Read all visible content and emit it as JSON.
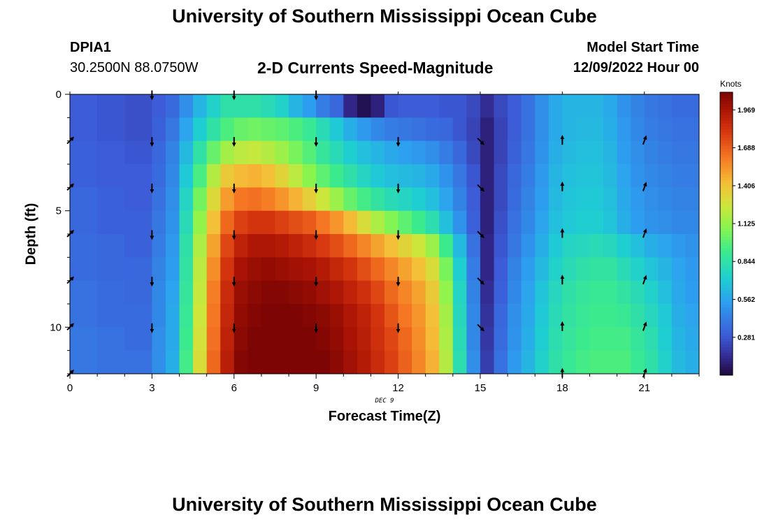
{
  "header": {
    "title": "University of Southern Mississippi Ocean Cube",
    "station": "DPIA1",
    "coords": "30.2500N  88.0750W",
    "subtitle": "2-D Currents Speed-Magnitude",
    "start_label": "Model Start Time",
    "start_value": "12/09/2022 Hour 00",
    "footer_title": "University of Southern Mississippi Ocean Cube"
  },
  "chart_data": {
    "type": "heatmap",
    "xlabel": "Forecast Time(Z)",
    "ylabel": "Depth (ft)",
    "date_label": "DEC 9",
    "colorbar_unit": "Knots",
    "x_ticks": [
      0,
      3,
      6,
      9,
      12,
      15,
      18,
      21
    ],
    "y_ticks": [
      0,
      5,
      10
    ],
    "xlim": [
      0,
      23
    ],
    "ylim": [
      0,
      12
    ],
    "y_inverted": true,
    "colorbar_ticks": [
      0.281,
      0.562,
      0.844,
      1.125,
      1.406,
      1.688,
      1.969
    ],
    "colorbar_range": [
      0,
      2.1
    ],
    "time_columns": [
      0,
      0.5,
      1,
      1.5,
      2,
      2.5,
      3,
      3.5,
      4,
      4.5,
      5,
      5.5,
      6,
      6.5,
      7,
      7.5,
      8,
      8.5,
      9,
      9.5,
      10,
      10.5,
      11,
      11.5,
      12,
      12.5,
      13,
      13.5,
      14,
      14.5,
      15,
      15.5,
      16,
      16.5,
      17,
      17.5,
      18,
      18.5,
      19,
      19.5,
      20,
      20.5,
      21,
      21.5,
      22,
      22.5
    ],
    "depth_rows": [
      0,
      1,
      2,
      3,
      4,
      5,
      6,
      7,
      8,
      9,
      10,
      11
    ],
    "speed_knots": [
      [
        0.3,
        0.3,
        0.28,
        0.28,
        0.26,
        0.26,
        0.3,
        0.35,
        0.48,
        0.62,
        0.74,
        0.84,
        0.84,
        0.84,
        0.8,
        0.74,
        0.62,
        0.54,
        0.42,
        0.34,
        0.12,
        0.04,
        0.1,
        0.28,
        0.3,
        0.3,
        0.3,
        0.28,
        0.28,
        0.24,
        0.14,
        0.24,
        0.3,
        0.38,
        0.48,
        0.58,
        0.62,
        0.62,
        0.62,
        0.58,
        0.5,
        0.44,
        0.4,
        0.38,
        0.36,
        0.36
      ],
      [
        0.3,
        0.3,
        0.28,
        0.28,
        0.26,
        0.26,
        0.32,
        0.4,
        0.56,
        0.72,
        0.85,
        0.96,
        1.02,
        1.04,
        1.02,
        1.0,
        0.96,
        0.9,
        0.8,
        0.7,
        0.6,
        0.52,
        0.46,
        0.42,
        0.4,
        0.38,
        0.36,
        0.34,
        0.28,
        0.22,
        0.1,
        0.22,
        0.3,
        0.38,
        0.48,
        0.58,
        0.62,
        0.64,
        0.64,
        0.6,
        0.52,
        0.46,
        0.42,
        0.4,
        0.38,
        0.38
      ],
      [
        0.32,
        0.32,
        0.3,
        0.3,
        0.28,
        0.28,
        0.34,
        0.44,
        0.64,
        0.85,
        1.02,
        1.16,
        1.22,
        1.24,
        1.2,
        1.14,
        1.06,
        0.98,
        0.88,
        0.8,
        0.72,
        0.66,
        0.62,
        0.58,
        0.55,
        0.52,
        0.48,
        0.42,
        0.34,
        0.24,
        0.1,
        0.22,
        0.32,
        0.4,
        0.5,
        0.6,
        0.64,
        0.66,
        0.66,
        0.62,
        0.54,
        0.48,
        0.44,
        0.42,
        0.4,
        0.4
      ],
      [
        0.32,
        0.32,
        0.3,
        0.3,
        0.3,
        0.3,
        0.36,
        0.46,
        0.7,
        0.95,
        1.2,
        1.38,
        1.44,
        1.46,
        1.42,
        1.34,
        1.22,
        1.1,
        1.0,
        0.92,
        0.84,
        0.76,
        0.7,
        0.66,
        0.64,
        0.62,
        0.58,
        0.5,
        0.4,
        0.28,
        0.1,
        0.24,
        0.34,
        0.42,
        0.52,
        0.62,
        0.66,
        0.68,
        0.68,
        0.64,
        0.56,
        0.5,
        0.46,
        0.44,
        0.42,
        0.42
      ],
      [
        0.34,
        0.34,
        0.32,
        0.32,
        0.3,
        0.3,
        0.38,
        0.48,
        0.76,
        1.05,
        1.32,
        1.52,
        1.62,
        1.64,
        1.6,
        1.54,
        1.46,
        1.36,
        1.26,
        1.14,
        1.02,
        0.94,
        0.86,
        0.8,
        0.76,
        0.72,
        0.66,
        0.56,
        0.44,
        0.3,
        0.1,
        0.24,
        0.36,
        0.44,
        0.54,
        0.64,
        0.68,
        0.7,
        0.7,
        0.66,
        0.58,
        0.52,
        0.48,
        0.46,
        0.44,
        0.44
      ],
      [
        0.34,
        0.34,
        0.32,
        0.32,
        0.32,
        0.32,
        0.4,
        0.5,
        0.8,
        1.12,
        1.42,
        1.66,
        1.78,
        1.82,
        1.82,
        1.78,
        1.74,
        1.7,
        1.62,
        1.54,
        1.44,
        1.3,
        1.18,
        1.08,
        1.0,
        0.92,
        0.82,
        0.66,
        0.5,
        0.32,
        0.1,
        0.26,
        0.38,
        0.46,
        0.56,
        0.66,
        0.7,
        0.72,
        0.72,
        0.68,
        0.6,
        0.54,
        0.5,
        0.48,
        0.46,
        0.46
      ],
      [
        0.36,
        0.36,
        0.34,
        0.34,
        0.32,
        0.32,
        0.42,
        0.52,
        0.84,
        1.18,
        1.5,
        1.76,
        1.9,
        1.96,
        1.96,
        1.94,
        1.9,
        1.86,
        1.8,
        1.74,
        1.66,
        1.58,
        1.5,
        1.42,
        1.34,
        1.26,
        1.14,
        0.92,
        0.64,
        0.38,
        0.12,
        0.28,
        0.4,
        0.5,
        0.6,
        0.7,
        0.76,
        0.78,
        0.8,
        0.78,
        0.72,
        0.66,
        0.6,
        0.56,
        0.52,
        0.5
      ],
      [
        0.36,
        0.36,
        0.34,
        0.34,
        0.34,
        0.34,
        0.44,
        0.54,
        0.86,
        1.22,
        1.56,
        1.82,
        1.98,
        2.02,
        2.04,
        2.02,
        2.0,
        1.98,
        1.94,
        1.88,
        1.82,
        1.74,
        1.66,
        1.58,
        1.5,
        1.42,
        1.3,
        1.06,
        0.72,
        0.42,
        0.12,
        0.3,
        0.44,
        0.54,
        0.64,
        0.74,
        0.8,
        0.84,
        0.86,
        0.86,
        0.8,
        0.74,
        0.68,
        0.62,
        0.56,
        0.52
      ],
      [
        0.38,
        0.38,
        0.36,
        0.36,
        0.34,
        0.34,
        0.46,
        0.56,
        0.88,
        1.24,
        1.6,
        1.86,
        2.02,
        2.06,
        2.08,
        2.08,
        2.06,
        2.04,
        2.0,
        1.96,
        1.9,
        1.84,
        1.76,
        1.66,
        1.58,
        1.5,
        1.38,
        1.12,
        0.76,
        0.44,
        0.14,
        0.32,
        0.46,
        0.56,
        0.68,
        0.78,
        0.84,
        0.88,
        0.9,
        0.9,
        0.86,
        0.8,
        0.74,
        0.66,
        0.58,
        0.54
      ],
      [
        0.38,
        0.38,
        0.36,
        0.36,
        0.36,
        0.36,
        0.46,
        0.58,
        0.9,
        1.26,
        1.62,
        1.88,
        2.04,
        2.08,
        2.1,
        2.1,
        2.1,
        2.08,
        2.06,
        2.02,
        1.96,
        1.9,
        1.82,
        1.72,
        1.62,
        1.54,
        1.42,
        1.16,
        0.78,
        0.46,
        0.16,
        0.34,
        0.48,
        0.58,
        0.7,
        0.8,
        0.86,
        0.9,
        0.92,
        0.92,
        0.9,
        0.84,
        0.78,
        0.7,
        0.6,
        0.56
      ],
      [
        0.4,
        0.4,
        0.38,
        0.38,
        0.36,
        0.36,
        0.48,
        0.58,
        0.92,
        1.28,
        1.64,
        1.9,
        2.06,
        2.1,
        2.12,
        2.12,
        2.12,
        2.1,
        2.08,
        2.04,
        1.98,
        1.92,
        1.84,
        1.76,
        1.66,
        1.56,
        1.44,
        1.18,
        0.8,
        0.46,
        0.18,
        0.36,
        0.5,
        0.6,
        0.72,
        0.82,
        0.88,
        0.92,
        0.94,
        0.94,
        0.94,
        0.88,
        0.82,
        0.72,
        0.62,
        0.58
      ],
      [
        0.4,
        0.4,
        0.38,
        0.38,
        0.38,
        0.38,
        0.48,
        0.6,
        0.94,
        1.3,
        1.66,
        1.92,
        2.08,
        2.12,
        2.14,
        2.14,
        2.14,
        2.12,
        2.1,
        2.06,
        2.0,
        1.94,
        1.86,
        1.78,
        1.68,
        1.58,
        1.46,
        1.2,
        0.82,
        0.48,
        0.2,
        0.38,
        0.52,
        0.62,
        0.74,
        0.84,
        0.9,
        0.94,
        0.96,
        0.96,
        0.96,
        0.9,
        0.84,
        0.74,
        0.64,
        0.6
      ]
    ],
    "arrows": [
      {
        "t": 0,
        "depth": 2,
        "direction": "NE"
      },
      {
        "t": 0,
        "depth": 4,
        "direction": "NE"
      },
      {
        "t": 0,
        "depth": 6,
        "direction": "NE"
      },
      {
        "t": 0,
        "depth": 8,
        "direction": "NE"
      },
      {
        "t": 0,
        "depth": 10,
        "direction": "NE"
      },
      {
        "t": 0,
        "depth": 12,
        "direction": "NE"
      },
      {
        "t": 3,
        "depth": 0,
        "direction": "S"
      },
      {
        "t": 3,
        "depth": 2,
        "direction": "S"
      },
      {
        "t": 3,
        "depth": 4,
        "direction": "S"
      },
      {
        "t": 3,
        "depth": 6,
        "direction": "S"
      },
      {
        "t": 3,
        "depth": 8,
        "direction": "S"
      },
      {
        "t": 3,
        "depth": 10,
        "direction": "S"
      },
      {
        "t": 6,
        "depth": 0,
        "direction": "S"
      },
      {
        "t": 6,
        "depth": 2,
        "direction": "S"
      },
      {
        "t": 6,
        "depth": 4,
        "direction": "S"
      },
      {
        "t": 6,
        "depth": 6,
        "direction": "S"
      },
      {
        "t": 6,
        "depth": 8,
        "direction": "S"
      },
      {
        "t": 6,
        "depth": 10,
        "direction": "S"
      },
      {
        "t": 9,
        "depth": 0,
        "direction": "S"
      },
      {
        "t": 9,
        "depth": 2,
        "direction": "S"
      },
      {
        "t": 9,
        "depth": 4,
        "direction": "S"
      },
      {
        "t": 9,
        "depth": 6,
        "direction": "S"
      },
      {
        "t": 9,
        "depth": 8,
        "direction": "S"
      },
      {
        "t": 9,
        "depth": 10,
        "direction": "S"
      },
      {
        "t": 12,
        "depth": 2,
        "direction": "S"
      },
      {
        "t": 12,
        "depth": 4,
        "direction": "S"
      },
      {
        "t": 12,
        "depth": 6,
        "direction": "S"
      },
      {
        "t": 12,
        "depth": 8,
        "direction": "S"
      },
      {
        "t": 12,
        "depth": 10,
        "direction": "S"
      },
      {
        "t": 15,
        "depth": 2,
        "direction": "SE"
      },
      {
        "t": 15,
        "depth": 4,
        "direction": "SE"
      },
      {
        "t": 15,
        "depth": 6,
        "direction": "SE"
      },
      {
        "t": 15,
        "depth": 8,
        "direction": "SE"
      },
      {
        "t": 15,
        "depth": 10,
        "direction": "SE"
      },
      {
        "t": 18,
        "depth": 2,
        "direction": "N"
      },
      {
        "t": 18,
        "depth": 4,
        "direction": "N"
      },
      {
        "t": 18,
        "depth": 6,
        "direction": "N"
      },
      {
        "t": 18,
        "depth": 8,
        "direction": "N"
      },
      {
        "t": 18,
        "depth": 10,
        "direction": "N"
      },
      {
        "t": 18,
        "depth": 12,
        "direction": "N"
      },
      {
        "t": 21,
        "depth": 2,
        "direction": "NNE"
      },
      {
        "t": 21,
        "depth": 4,
        "direction": "NNE"
      },
      {
        "t": 21,
        "depth": 6,
        "direction": "NNE"
      },
      {
        "t": 21,
        "depth": 8,
        "direction": "NNE"
      },
      {
        "t": 21,
        "depth": 10,
        "direction": "NNE"
      },
      {
        "t": 21,
        "depth": 12,
        "direction": "NNE"
      }
    ]
  }
}
